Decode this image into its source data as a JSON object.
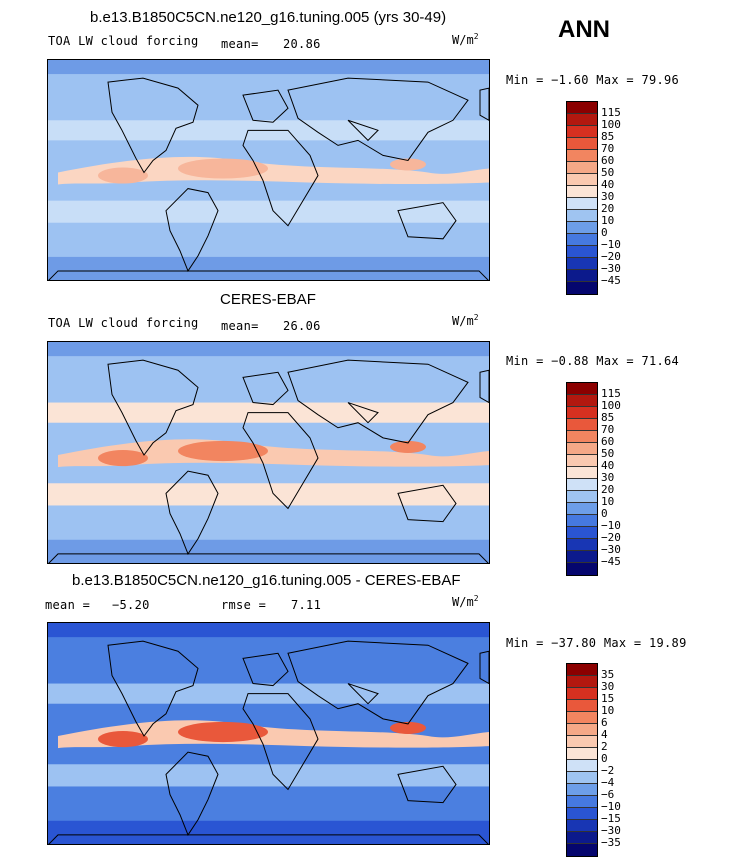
{
  "season": "ANN",
  "panels": [
    {
      "title": "b.e13.B1850C5CN.ne120_g16.tuning.005 (yrs 30-49)",
      "variable": "TOA LW cloud forcing",
      "mean_label": "mean=",
      "mean": "20.86",
      "units": "W/m",
      "units_sup": "2",
      "minmax": "Min =  −1.60 Max =  79.96",
      "levels": [
        "115",
        "100",
        "85",
        "70",
        "60",
        "50",
        "40",
        "30",
        "20",
        "10",
        "0",
        "−10",
        "−20",
        "−30",
        "−45"
      ],
      "colors": [
        "#8b0000",
        "#b2180f",
        "#d63020",
        "#e9583b",
        "#f28560",
        "#f5a887",
        "#fac9b0",
        "#fbe4d6",
        "#cfe1f7",
        "#9fc4f1",
        "#6d9ee8",
        "#4679e0",
        "#2a55d3",
        "#1836b4",
        "#0c1a8c",
        "#05066e"
      ],
      "map_colors": {
        "bg": "#9dc2f2",
        "band": "#c8def7",
        "hot": "#f7b69b",
        "peach": "#fbd6c2",
        "deep": "#6e9be6"
      }
    },
    {
      "title": "CERES-EBAF",
      "variable": "TOA LW cloud forcing",
      "mean_label": "mean=",
      "mean": "26.06",
      "units": "W/m",
      "units_sup": "2",
      "minmax": "Min =  −0.88 Max =  71.64",
      "levels": [
        "115",
        "100",
        "85",
        "70",
        "60",
        "50",
        "40",
        "30",
        "20",
        "10",
        "0",
        "−10",
        "−20",
        "−30",
        "−45"
      ],
      "colors": [
        "#8b0000",
        "#b2180f",
        "#d63020",
        "#e9583b",
        "#f28560",
        "#f5a887",
        "#fac9b0",
        "#fbe4d6",
        "#cfe1f7",
        "#9fc4f1",
        "#6d9ee8",
        "#4679e0",
        "#2a55d3",
        "#1836b4",
        "#0c1a8c",
        "#05066e"
      ],
      "map_colors": {
        "bg": "#9dc2f2",
        "band": "#fbe4d6",
        "hot": "#f28560",
        "peach": "#fac9b0",
        "deep": "#6e9be6"
      }
    },
    {
      "title": "b.e13.B1850C5CN.ne120_g16.tuning.005 - CERES-EBAF",
      "variable": "",
      "mean_label": "mean =",
      "mean": "−5.20",
      "rmse_label": "rmse =",
      "rmse": "7.11",
      "units": "W/m",
      "units_sup": "2",
      "minmax": "Min = −37.80 Max =  19.89",
      "levels": [
        "35",
        "30",
        "15",
        "10",
        "6",
        "4",
        "2",
        "0",
        "−2",
        "−4",
        "−6",
        "−10",
        "−15",
        "−30",
        "−35"
      ],
      "colors": [
        "#8b0000",
        "#b2180f",
        "#d63020",
        "#e9583b",
        "#f28560",
        "#f5a887",
        "#fac9b0",
        "#fbe4d6",
        "#cfe1f7",
        "#9fc4f1",
        "#6d9ee8",
        "#4679e0",
        "#2a55d3",
        "#1836b4",
        "#0c1a8c",
        "#05066e"
      ],
      "map_colors": {
        "bg": "#4b7fe0",
        "band": "#9dc2f2",
        "hot": "#e9583b",
        "peach": "#fac9b0",
        "deep": "#2a55d3"
      }
    }
  ]
}
